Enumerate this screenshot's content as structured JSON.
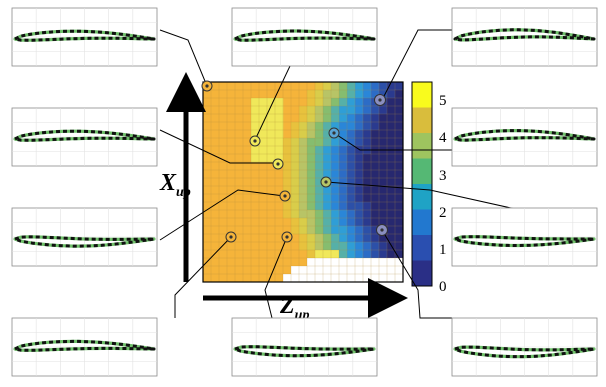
{
  "axis_x": {
    "label": "Z",
    "subscript": "up"
  },
  "axis_y": {
    "label": "X",
    "subscript": "up"
  },
  "colorbar": {
    "ticks": [
      "5",
      "4",
      "3",
      "2",
      "1",
      "0"
    ],
    "colors": [
      "#f9fb1d",
      "#d9bd3c",
      "#9ec45f",
      "#55b874",
      "#1fa3c5",
      "#2278cf",
      "#2a4fb0",
      "#2a2f86"
    ]
  },
  "heatmap": {
    "background_color": "#f5b43a",
    "highlight_color": "#f0e85a",
    "invalid_color": "#ffffff"
  },
  "airfoil": {
    "baseline_color": "#6fc06a",
    "dashed_color": "#111111"
  }
}
